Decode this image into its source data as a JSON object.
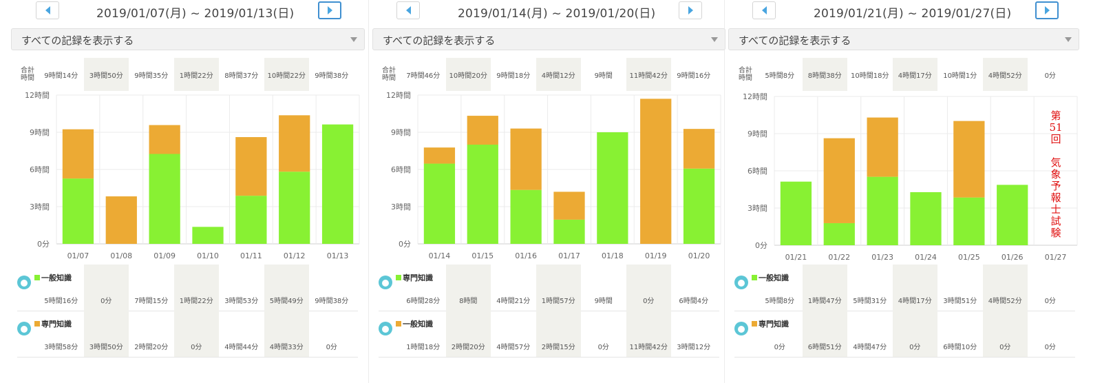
{
  "colors": {
    "general": "#88f133",
    "specialized": "#ecaa34",
    "accent": "#49a5e0",
    "annotation": "#e01010"
  },
  "icons": {
    "prev": "chevron-left-icon",
    "next": "chevron-right-icon",
    "dropdown": "dropdown-arrow-icon",
    "user": "user-avatar-icon"
  },
  "totals_label": "合計\n時間",
  "weeks": [
    {
      "date_range": "2019/01/07(月) ~ 2019/01/13(日)",
      "filter_label": "すべての記録を表示する",
      "next_active": true,
      "totals": [
        "9時間14分",
        "3時間50分",
        "9時間35分",
        "1時間22分",
        "8時間37分",
        "10時間22分",
        "9時間38分"
      ],
      "rows": [
        {
          "name": "一般知識",
          "key": "general",
          "values": [
            "5時間16分",
            "0分",
            "7時間15分",
            "1時間22分",
            "3時間53分",
            "5時間49分",
            "9時間38分"
          ]
        },
        {
          "name": "専門知識",
          "key": "specialized",
          "values": [
            "3時間58分",
            "3時間50分",
            "2時間20分",
            "0分",
            "4時間44分",
            "4時間33分",
            "0分"
          ]
        }
      ],
      "annotation": ""
    },
    {
      "date_range": "2019/01/14(月) ~ 2019/01/20(日)",
      "filter_label": "すべての記録を表示する",
      "next_active": false,
      "totals": [
        "7時間46分",
        "10時間20分",
        "9時間18分",
        "4時間12分",
        "9時間",
        "11時間42分",
        "9時間16分"
      ],
      "rows": [
        {
          "name": "専門知識",
          "key": "general",
          "values": [
            "6時間28分",
            "8時間",
            "4時間21分",
            "1時間57分",
            "9時間",
            "0分",
            "6時間4分"
          ]
        },
        {
          "name": "一般知識",
          "key": "specialized",
          "values": [
            "1時間18分",
            "2時間20分",
            "4時間57分",
            "2時間15分",
            "0分",
            "11時間42分",
            "3時間12分"
          ]
        }
      ],
      "annotation": ""
    },
    {
      "date_range": "2019/01/21(月) ~ 2019/01/27(日)",
      "filter_label": "すべての記録を表示する",
      "next_active": true,
      "totals": [
        "5時間8分",
        "8時間38分",
        "10時間18分",
        "4時間17分",
        "10時間1分",
        "4時間52分",
        "0分"
      ],
      "rows": [
        {
          "name": "一般知識",
          "key": "general",
          "values": [
            "5時間8分",
            "1時間47分",
            "5時間31分",
            "4時間17分",
            "3時間51分",
            "4時間52分",
            "0分"
          ]
        },
        {
          "name": "専門知識",
          "key": "specialized",
          "values": [
            "0分",
            "6時間51分",
            "4時間47分",
            "0分",
            "6時間10分",
            "0分",
            "0分"
          ]
        }
      ],
      "annotation": "第\n51\n回\n\n気\n象\n予\n報\n士\n試\n験"
    }
  ],
  "chart_data": [
    {
      "type": "bar",
      "stacked": true,
      "categories": [
        "01/07",
        "01/08",
        "01/09",
        "01/10",
        "01/11",
        "01/12",
        "01/13"
      ],
      "series": [
        {
          "name": "一般知識",
          "values": [
            5.27,
            0,
            7.25,
            1.37,
            3.88,
            5.82,
            9.63
          ]
        },
        {
          "name": "専門知識",
          "values": [
            3.97,
            3.83,
            2.33,
            0,
            4.73,
            4.55,
            0
          ]
        }
      ],
      "yticks": [
        "0分",
        "3時間",
        "6時間",
        "9時間",
        "12時間"
      ],
      "ylim": [
        0,
        12
      ],
      "grid": true
    },
    {
      "type": "bar",
      "stacked": true,
      "categories": [
        "01/14",
        "01/15",
        "01/16",
        "01/17",
        "01/18",
        "01/19",
        "01/20"
      ],
      "series": [
        {
          "name": "専門知識",
          "values": [
            6.47,
            8.0,
            4.35,
            1.95,
            9.0,
            0,
            6.07
          ]
        },
        {
          "name": "一般知識",
          "values": [
            1.3,
            2.33,
            4.95,
            2.25,
            0,
            11.7,
            3.2
          ]
        }
      ],
      "yticks": [
        "0分",
        "3時間",
        "6時間",
        "9時間",
        "12時間"
      ],
      "ylim": [
        0,
        12
      ],
      "grid": true
    },
    {
      "type": "bar",
      "stacked": true,
      "categories": [
        "01/21",
        "01/22",
        "01/23",
        "01/24",
        "01/25",
        "01/26",
        "01/27"
      ],
      "series": [
        {
          "name": "一般知識",
          "values": [
            5.13,
            1.78,
            5.52,
            4.28,
            3.85,
            4.87,
            0
          ]
        },
        {
          "name": "専門知識",
          "values": [
            0,
            6.85,
            4.78,
            0,
            6.17,
            0,
            0
          ]
        }
      ],
      "yticks": [
        "0分",
        "3時間",
        "6時間",
        "9時間",
        "12時間"
      ],
      "ylim": [
        0,
        12
      ],
      "grid": true
    }
  ]
}
